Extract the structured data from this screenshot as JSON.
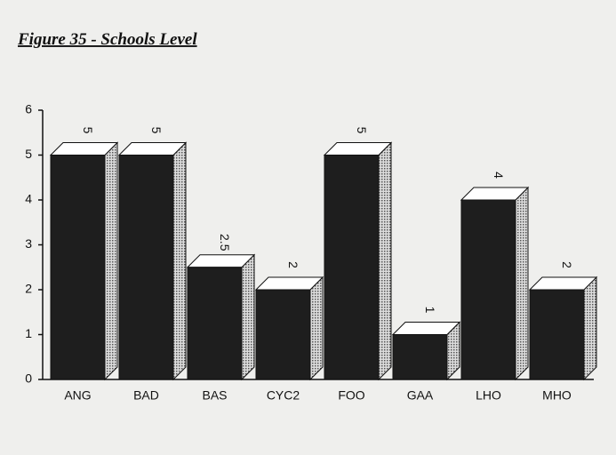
{
  "chart_data": {
    "type": "bar3d",
    "title": "Figure 35 - Schools Level",
    "categories": [
      "ANG",
      "BAD",
      "BAS",
      "CYC2",
      "FOO",
      "GAA",
      "LHO",
      "MHO"
    ],
    "values": [
      5,
      5,
      2.5,
      2,
      5,
      1,
      4,
      2
    ],
    "color": "#1e1e1e",
    "ylim": [
      0,
      6
    ],
    "yticks": [
      0,
      1,
      2,
      3,
      4,
      5,
      6
    ],
    "grid": false
  }
}
